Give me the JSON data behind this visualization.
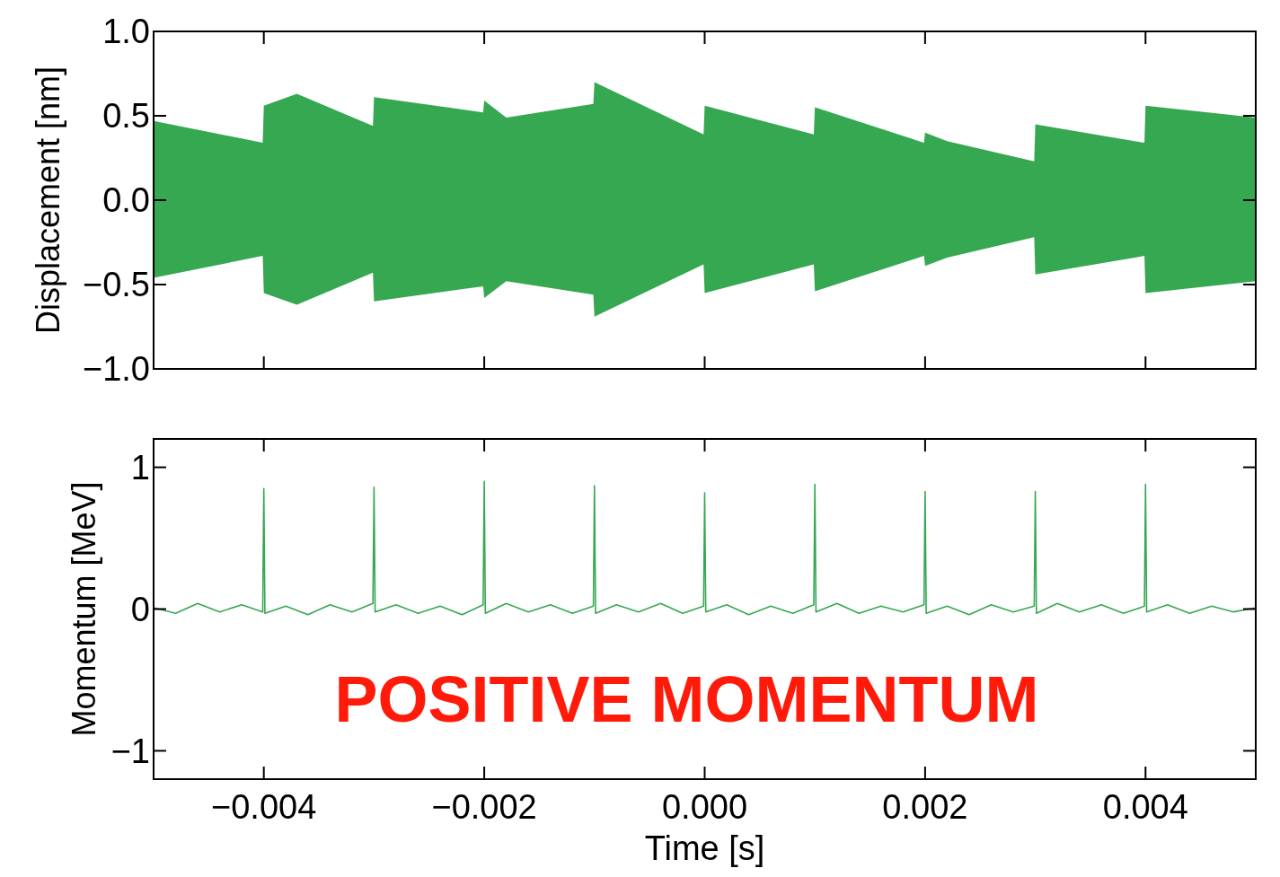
{
  "chart_data": [
    {
      "type": "area",
      "ylabel": "Displacement [nm]",
      "xlim": [
        -0.005,
        0.005
      ],
      "ylim": [
        -1.0,
        1.0
      ],
      "tick_labels": "y",
      "xticks": [
        {
          "value": -0.004,
          "label": null
        },
        {
          "value": -0.002,
          "label": null
        },
        {
          "value": 0,
          "label": null
        },
        {
          "value": 0.002,
          "label": null
        },
        {
          "value": 0.004,
          "label": null
        }
      ],
      "yticks": [
        {
          "value": -1,
          "label": "−1.0"
        },
        {
          "value": -0.5,
          "label": "−0.5"
        },
        {
          "value": 0,
          "label": "0.0"
        },
        {
          "value": 0.5,
          "label": "0.5"
        },
        {
          "value": 1,
          "label": "1.0"
        }
      ],
      "series": [
        {
          "color": "#36a852",
          "x": [
            -0.005,
            -0.00401,
            -0.004,
            -0.0037,
            -0.00301,
            -0.003,
            -0.00201,
            -0.002,
            -0.0018,
            -0.00101,
            -0.001,
            -1e-05,
            0,
            0.00099,
            0.001,
            0.00199,
            0.002,
            0.0022,
            0.00299,
            0.003,
            0.00399,
            0.004,
            0.005
          ],
          "values": [
            0.47,
            0.34,
            0.56,
            0.63,
            0.44,
            0.61,
            0.52,
            0.59,
            0.49,
            0.57,
            0.7,
            0.39,
            0.56,
            0.39,
            0.55,
            0.34,
            0.4,
            0.35,
            0.23,
            0.45,
            0.34,
            0.56,
            0.49
          ]
        },
        {
          "color": "#36a852",
          "x": [
            -0.005,
            -0.00401,
            -0.004,
            -0.0037,
            -0.00301,
            -0.003,
            -0.00201,
            -0.002,
            -0.0018,
            -0.00101,
            -0.001,
            -1e-05,
            0,
            0.00099,
            0.001,
            0.00199,
            0.002,
            0.0022,
            0.00299,
            0.003,
            0.00399,
            0.004,
            0.005
          ],
          "values": [
            -0.46,
            -0.33,
            -0.55,
            -0.62,
            -0.43,
            -0.6,
            -0.51,
            -0.58,
            -0.48,
            -0.56,
            -0.69,
            -0.38,
            -0.55,
            -0.38,
            -0.54,
            -0.33,
            -0.39,
            -0.34,
            -0.22,
            -0.44,
            -0.33,
            -0.55,
            -0.48
          ]
        }
      ]
    },
    {
      "type": "line",
      "ylabel": "Momentum [MeV]",
      "xlabel": "Time [s]",
      "xlim": [
        -0.005,
        0.005
      ],
      "ylim": [
        -1.2,
        1.2
      ],
      "xticks": [
        {
          "value": -0.004,
          "label": "−0.004"
        },
        {
          "value": -0.002,
          "label": "−0.002"
        },
        {
          "value": 0,
          "label": "0.000"
        },
        {
          "value": 0.002,
          "label": "0.002"
        },
        {
          "value": 0.004,
          "label": "0.004"
        }
      ],
      "yticks": [
        {
          "value": -1,
          "label": "−1"
        },
        0,
        1
      ],
      "annotations": [
        "POSITIVE MOMENTUM"
      ],
      "series": [
        {
          "color": "#36a852",
          "x": [
            -0.005,
            -0.0048,
            -0.0046,
            -0.0044,
            -0.0042,
            -0.00401,
            -0.004,
            -0.00399,
            -0.0038,
            -0.0036,
            -0.0034,
            -0.0032,
            -0.00301,
            -0.003,
            -0.00299,
            -0.0028,
            -0.0026,
            -0.0024,
            -0.0022,
            -0.00201,
            -0.002,
            -0.00199,
            -0.0018,
            -0.0016,
            -0.0014,
            -0.0012,
            -0.00101,
            -0.001,
            -0.00099,
            -0.0008,
            -0.0006,
            -0.0004,
            -0.0002,
            -1e-05,
            0,
            1e-05,
            0.0002,
            0.0004,
            0.0006,
            0.0008,
            0.00099,
            0.001,
            0.00101,
            0.0012,
            0.0014,
            0.0016,
            0.0018,
            0.00199,
            0.002,
            0.00201,
            0.0022,
            0.0024,
            0.0026,
            0.0028,
            0.00299,
            0.003,
            0.00301,
            0.0032,
            0.0034,
            0.0036,
            0.0038,
            0.00399,
            0.004,
            0.00401,
            0.0042,
            0.0044,
            0.0046,
            0.0048,
            0.005
          ],
          "values": [
            0.01,
            -0.03,
            0.04,
            -0.02,
            0.03,
            -0.02,
            0.85,
            -0.03,
            0.02,
            -0.04,
            0.03,
            -0.02,
            0.04,
            0.86,
            -0.02,
            0.03,
            -0.03,
            0.02,
            -0.04,
            0.03,
            0.9,
            -0.03,
            0.04,
            -0.02,
            0.03,
            -0.03,
            0.02,
            0.87,
            -0.03,
            0.03,
            -0.02,
            0.04,
            -0.03,
            0.02,
            0.82,
            -0.02,
            0.03,
            -0.04,
            0.02,
            -0.03,
            0.03,
            0.88,
            -0.02,
            0.04,
            -0.03,
            0.02,
            -0.02,
            0.03,
            0.83,
            -0.03,
            0.02,
            -0.04,
            0.03,
            -0.02,
            0.02,
            0.83,
            -0.03,
            0.04,
            -0.02,
            0.03,
            -0.03,
            0.02,
            0.88,
            -0.02,
            0.03,
            -0.03,
            0.02,
            -0.02,
            0.01
          ]
        }
      ]
    }
  ]
}
